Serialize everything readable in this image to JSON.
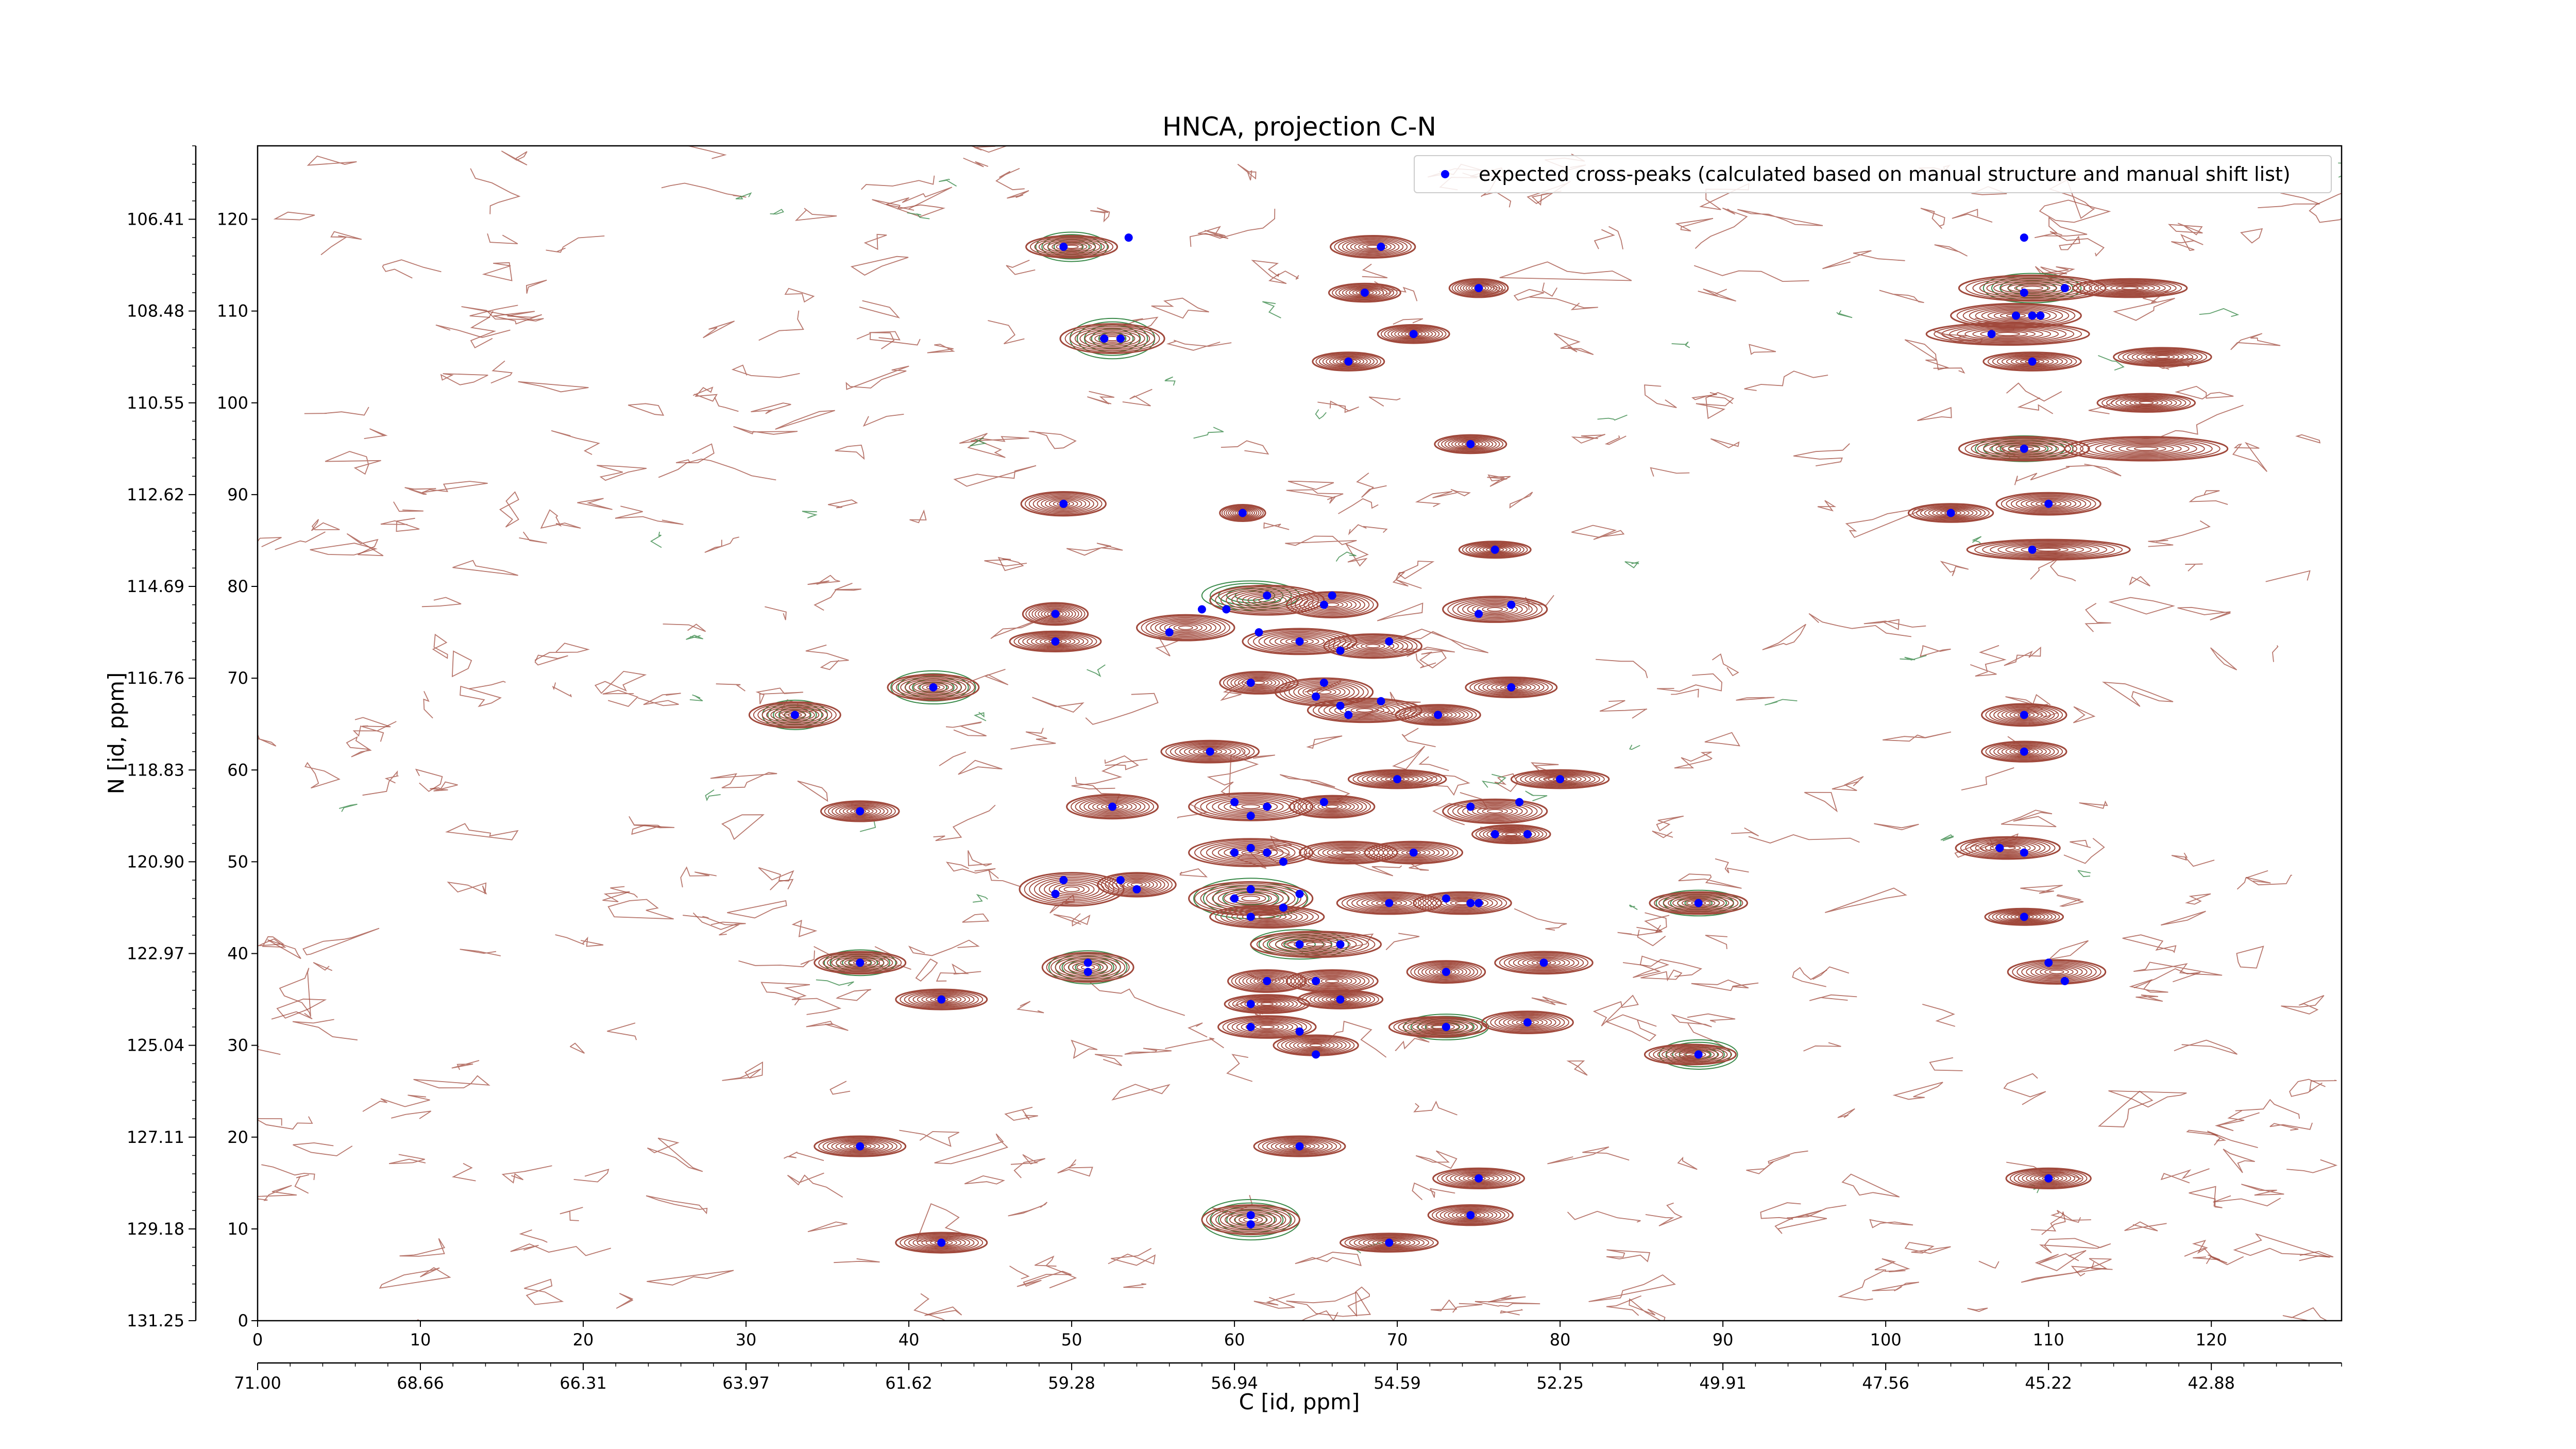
{
  "chart_data": {
    "type": "scatter",
    "title": "HNCA, projection C-N",
    "xlabel": "C [id, ppm]",
    "ylabel": "N [id, ppm]",
    "xlim": [
      0,
      128
    ],
    "ylim": [
      0,
      128
    ],
    "x_ticks": [
      0,
      10,
      20,
      30,
      40,
      50,
      60,
      70,
      80,
      90,
      100,
      110,
      120
    ],
    "y_ticks": [
      0,
      10,
      20,
      30,
      40,
      50,
      60,
      70,
      80,
      90,
      100,
      110,
      120
    ],
    "x_ppm_ticks": [
      "71.00",
      "68.66",
      "66.31",
      "63.97",
      "61.62",
      "59.28",
      "56.94",
      "54.59",
      "52.25",
      "49.91",
      "47.56",
      "45.22",
      "42.88"
    ],
    "y_ppm_ticks": [
      "131.25",
      "129.18",
      "127.11",
      "125.04",
      "122.97",
      "120.90",
      "118.83",
      "116.76",
      "114.69",
      "112.62",
      "110.55",
      "108.48",
      "106.41"
    ],
    "grid": false,
    "legend_position": "top-right",
    "legend_label": "expected cross-peaks (calculated based on manual structure and manual shift list)",
    "colors": {
      "positive_contour": "#a0493c",
      "negative_contour": "#3a8a4a",
      "peak_marker": "#0000ff"
    },
    "series": [
      {
        "name": "expected cross-peaks (calculated based on manual structure and manual shift list)",
        "points": [
          {
            "x": 49.5,
            "y": 117
          },
          {
            "x": 53.5,
            "y": 118
          },
          {
            "x": 69,
            "y": 117
          },
          {
            "x": 68,
            "y": 112
          },
          {
            "x": 75,
            "y": 112.5
          },
          {
            "x": 52,
            "y": 107
          },
          {
            "x": 53,
            "y": 107
          },
          {
            "x": 67,
            "y": 104.5
          },
          {
            "x": 71,
            "y": 107.5
          },
          {
            "x": 108.5,
            "y": 118
          },
          {
            "x": 108,
            "y": 109.5
          },
          {
            "x": 109,
            "y": 109.5
          },
          {
            "x": 109.5,
            "y": 109.5
          },
          {
            "x": 108.5,
            "y": 112
          },
          {
            "x": 106.5,
            "y": 107.5
          },
          {
            "x": 111,
            "y": 112.5
          },
          {
            "x": 109,
            "y": 104.5
          },
          {
            "x": 74.5,
            "y": 95.5
          },
          {
            "x": 49.5,
            "y": 89
          },
          {
            "x": 60.5,
            "y": 88
          },
          {
            "x": 108.5,
            "y": 95
          },
          {
            "x": 110,
            "y": 89
          },
          {
            "x": 104,
            "y": 88
          },
          {
            "x": 109,
            "y": 84
          },
          {
            "x": 76,
            "y": 84
          },
          {
            "x": 49,
            "y": 77
          },
          {
            "x": 49,
            "y": 74
          },
          {
            "x": 56,
            "y": 75
          },
          {
            "x": 58,
            "y": 77.5
          },
          {
            "x": 59.5,
            "y": 77.5
          },
          {
            "x": 62,
            "y": 79
          },
          {
            "x": 66,
            "y": 79
          },
          {
            "x": 65.5,
            "y": 78
          },
          {
            "x": 61.5,
            "y": 75
          },
          {
            "x": 64,
            "y": 74
          },
          {
            "x": 66.5,
            "y": 73
          },
          {
            "x": 69.5,
            "y": 74
          },
          {
            "x": 75,
            "y": 77
          },
          {
            "x": 77,
            "y": 78
          },
          {
            "x": 41.5,
            "y": 69
          },
          {
            "x": 33,
            "y": 66
          },
          {
            "x": 61,
            "y": 69.5
          },
          {
            "x": 65,
            "y": 68
          },
          {
            "x": 65.5,
            "y": 69.5
          },
          {
            "x": 66.5,
            "y": 67
          },
          {
            "x": 69,
            "y": 67.5
          },
          {
            "x": 67,
            "y": 66
          },
          {
            "x": 72.5,
            "y": 66
          },
          {
            "x": 77,
            "y": 69
          },
          {
            "x": 58.5,
            "y": 62
          },
          {
            "x": 108.5,
            "y": 66
          },
          {
            "x": 108.5,
            "y": 62
          },
          {
            "x": 70,
            "y": 59
          },
          {
            "x": 80,
            "y": 59
          },
          {
            "x": 37,
            "y": 55.5
          },
          {
            "x": 52.5,
            "y": 56
          },
          {
            "x": 60,
            "y": 56.5
          },
          {
            "x": 62,
            "y": 56
          },
          {
            "x": 61,
            "y": 55
          },
          {
            "x": 65.5,
            "y": 56.5
          },
          {
            "x": 74.5,
            "y": 56
          },
          {
            "x": 77.5,
            "y": 56.5
          },
          {
            "x": 76,
            "y": 53
          },
          {
            "x": 78,
            "y": 53
          },
          {
            "x": 60,
            "y": 51
          },
          {
            "x": 61,
            "y": 51.5
          },
          {
            "x": 62,
            "y": 51
          },
          {
            "x": 63,
            "y": 50
          },
          {
            "x": 71,
            "y": 51
          },
          {
            "x": 107,
            "y": 51.5
          },
          {
            "x": 108.5,
            "y": 51
          },
          {
            "x": 49.5,
            "y": 48
          },
          {
            "x": 49,
            "y": 46.5
          },
          {
            "x": 53,
            "y": 48
          },
          {
            "x": 54,
            "y": 47
          },
          {
            "x": 60,
            "y": 46
          },
          {
            "x": 61,
            "y": 47
          },
          {
            "x": 64,
            "y": 46.5
          },
          {
            "x": 61,
            "y": 44
          },
          {
            "x": 63,
            "y": 45
          },
          {
            "x": 69.5,
            "y": 45.5
          },
          {
            "x": 73,
            "y": 46
          },
          {
            "x": 74.5,
            "y": 45.5
          },
          {
            "x": 75,
            "y": 45.5
          },
          {
            "x": 88.5,
            "y": 45.5
          },
          {
            "x": 108.5,
            "y": 44
          },
          {
            "x": 64,
            "y": 41
          },
          {
            "x": 66.5,
            "y": 41
          },
          {
            "x": 37,
            "y": 39
          },
          {
            "x": 51,
            "y": 39
          },
          {
            "x": 51,
            "y": 38
          },
          {
            "x": 62,
            "y": 37
          },
          {
            "x": 65,
            "y": 37
          },
          {
            "x": 73,
            "y": 38
          },
          {
            "x": 79,
            "y": 39
          },
          {
            "x": 110,
            "y": 39
          },
          {
            "x": 111,
            "y": 37
          },
          {
            "x": 42,
            "y": 35
          },
          {
            "x": 61,
            "y": 34.5
          },
          {
            "x": 66.5,
            "y": 35
          },
          {
            "x": 61,
            "y": 32
          },
          {
            "x": 64,
            "y": 31.5
          },
          {
            "x": 65,
            "y": 29
          },
          {
            "x": 73,
            "y": 32
          },
          {
            "x": 78,
            "y": 32.5
          },
          {
            "x": 88.5,
            "y": 29
          },
          {
            "x": 37,
            "y": 19
          },
          {
            "x": 64,
            "y": 19
          },
          {
            "x": 75,
            "y": 15.5
          },
          {
            "x": 110,
            "y": 15.5
          },
          {
            "x": 74.5,
            "y": 11.5
          },
          {
            "x": 61,
            "y": 11.5
          },
          {
            "x": 61,
            "y": 10.5
          },
          {
            "x": 42,
            "y": 8.5
          },
          {
            "x": 69.5,
            "y": 8.5
          }
        ]
      }
    ],
    "positive_clusters": [
      {
        "x": 50,
        "y": 117,
        "rx": 2.8,
        "ry": 1.2
      },
      {
        "x": 52.5,
        "y": 107,
        "rx": 3.2,
        "ry": 1.6
      },
      {
        "x": 68.5,
        "y": 117,
        "rx": 2.6,
        "ry": 1.2
      },
      {
        "x": 75,
        "y": 112.5,
        "rx": 1.8,
        "ry": 1.0
      },
      {
        "x": 67,
        "y": 104.5,
        "rx": 2.2,
        "ry": 1.0
      },
      {
        "x": 71,
        "y": 107.5,
        "rx": 2.2,
        "ry": 1.0
      },
      {
        "x": 68,
        "y": 112,
        "rx": 2.2,
        "ry": 1.0
      },
      {
        "x": 109,
        "y": 112.5,
        "rx": 4.5,
        "ry": 1.4
      },
      {
        "x": 108,
        "y": 109.5,
        "rx": 4.0,
        "ry": 1.3
      },
      {
        "x": 107.5,
        "y": 107.5,
        "rx": 5.0,
        "ry": 1.2
      },
      {
        "x": 115,
        "y": 112.5,
        "rx": 3.5,
        "ry": 1.0
      },
      {
        "x": 117,
        "y": 105,
        "rx": 3.0,
        "ry": 1.0
      },
      {
        "x": 109,
        "y": 104.5,
        "rx": 3.0,
        "ry": 1.0
      },
      {
        "x": 116,
        "y": 100,
        "rx": 3.0,
        "ry": 1.0
      },
      {
        "x": 108.5,
        "y": 95,
        "rx": 4.0,
        "ry": 1.3
      },
      {
        "x": 116,
        "y": 95,
        "rx": 5.0,
        "ry": 1.3
      },
      {
        "x": 110,
        "y": 89,
        "rx": 3.2,
        "ry": 1.2
      },
      {
        "x": 104,
        "y": 88,
        "rx": 2.6,
        "ry": 1.0
      },
      {
        "x": 110,
        "y": 84,
        "rx": 5.0,
        "ry": 1.1
      },
      {
        "x": 74.5,
        "y": 95.5,
        "rx": 2.2,
        "ry": 1.0
      },
      {
        "x": 49.5,
        "y": 89,
        "rx": 2.6,
        "ry": 1.3
      },
      {
        "x": 60.5,
        "y": 88,
        "rx": 1.4,
        "ry": 0.9
      },
      {
        "x": 76,
        "y": 84,
        "rx": 2.2,
        "ry": 0.9
      },
      {
        "x": 49,
        "y": 77,
        "rx": 2.0,
        "ry": 1.2
      },
      {
        "x": 49,
        "y": 74,
        "rx": 2.8,
        "ry": 1.1
      },
      {
        "x": 57,
        "y": 75.5,
        "rx": 3.0,
        "ry": 1.4
      },
      {
        "x": 62,
        "y": 78.5,
        "rx": 3.5,
        "ry": 1.6
      },
      {
        "x": 66,
        "y": 78,
        "rx": 2.8,
        "ry": 1.4
      },
      {
        "x": 64,
        "y": 74,
        "rx": 3.5,
        "ry": 1.4
      },
      {
        "x": 68.5,
        "y": 73.5,
        "rx": 3.0,
        "ry": 1.3
      },
      {
        "x": 76,
        "y": 77.5,
        "rx": 3.2,
        "ry": 1.4
      },
      {
        "x": 41.5,
        "y": 69,
        "rx": 2.8,
        "ry": 1.4
      },
      {
        "x": 33,
        "y": 66,
        "rx": 2.8,
        "ry": 1.4
      },
      {
        "x": 61.5,
        "y": 69.5,
        "rx": 2.4,
        "ry": 1.2
      },
      {
        "x": 65.5,
        "y": 68.5,
        "rx": 3.0,
        "ry": 1.5
      },
      {
        "x": 68,
        "y": 66.5,
        "rx": 3.5,
        "ry": 1.3
      },
      {
        "x": 72.5,
        "y": 66,
        "rx": 2.6,
        "ry": 1.1
      },
      {
        "x": 77,
        "y": 69,
        "rx": 2.8,
        "ry": 1.1
      },
      {
        "x": 58.5,
        "y": 62,
        "rx": 3.0,
        "ry": 1.2
      },
      {
        "x": 108.5,
        "y": 66,
        "rx": 2.6,
        "ry": 1.2
      },
      {
        "x": 108.5,
        "y": 62,
        "rx": 2.6,
        "ry": 1.1
      },
      {
        "x": 70,
        "y": 59,
        "rx": 3.0,
        "ry": 1.0
      },
      {
        "x": 80,
        "y": 59,
        "rx": 3.0,
        "ry": 1.0
      },
      {
        "x": 37,
        "y": 55.5,
        "rx": 2.4,
        "ry": 1.1
      },
      {
        "x": 52.5,
        "y": 56,
        "rx": 2.8,
        "ry": 1.3
      },
      {
        "x": 61,
        "y": 56,
        "rx": 3.8,
        "ry": 1.5
      },
      {
        "x": 66,
        "y": 56,
        "rx": 2.6,
        "ry": 1.2
      },
      {
        "x": 76,
        "y": 55.5,
        "rx": 3.2,
        "ry": 1.3
      },
      {
        "x": 77,
        "y": 53,
        "rx": 2.4,
        "ry": 1.0
      },
      {
        "x": 61,
        "y": 51,
        "rx": 3.8,
        "ry": 1.5
      },
      {
        "x": 67,
        "y": 51,
        "rx": 3.0,
        "ry": 1.2
      },
      {
        "x": 71,
        "y": 51,
        "rx": 3.0,
        "ry": 1.2
      },
      {
        "x": 107.5,
        "y": 51.5,
        "rx": 3.2,
        "ry": 1.2
      },
      {
        "x": 50,
        "y": 47,
        "rx": 3.2,
        "ry": 1.8
      },
      {
        "x": 54,
        "y": 47.5,
        "rx": 2.4,
        "ry": 1.3
      },
      {
        "x": 61,
        "y": 46,
        "rx": 3.8,
        "ry": 1.8
      },
      {
        "x": 62,
        "y": 44,
        "rx": 3.5,
        "ry": 1.2
      },
      {
        "x": 69.5,
        "y": 45.5,
        "rx": 3.2,
        "ry": 1.2
      },
      {
        "x": 74,
        "y": 45.5,
        "rx": 3.0,
        "ry": 1.2
      },
      {
        "x": 88.5,
        "y": 45.5,
        "rx": 3.0,
        "ry": 1.2
      },
      {
        "x": 108.5,
        "y": 44,
        "rx": 2.4,
        "ry": 0.9
      },
      {
        "x": 65,
        "y": 41,
        "rx": 4.0,
        "ry": 1.4
      },
      {
        "x": 37,
        "y": 39,
        "rx": 2.8,
        "ry": 1.2
      },
      {
        "x": 51,
        "y": 38.5,
        "rx": 2.8,
        "ry": 1.6
      },
      {
        "x": 62,
        "y": 37,
        "rx": 2.4,
        "ry": 1.2
      },
      {
        "x": 66,
        "y": 37,
        "rx": 2.8,
        "ry": 1.2
      },
      {
        "x": 73,
        "y": 38,
        "rx": 2.4,
        "ry": 1.2
      },
      {
        "x": 79,
        "y": 39,
        "rx": 3.0,
        "ry": 1.2
      },
      {
        "x": 110.5,
        "y": 38,
        "rx": 3.0,
        "ry": 1.3
      },
      {
        "x": 42,
        "y": 35,
        "rx": 2.8,
        "ry": 1.1
      },
      {
        "x": 62,
        "y": 34.5,
        "rx": 2.6,
        "ry": 1.0
      },
      {
        "x": 66.5,
        "y": 35,
        "rx": 2.6,
        "ry": 1.0
      },
      {
        "x": 62,
        "y": 32,
        "rx": 3.0,
        "ry": 1.2
      },
      {
        "x": 65,
        "y": 30,
        "rx": 2.6,
        "ry": 1.1
      },
      {
        "x": 72.5,
        "y": 32,
        "rx": 3.0,
        "ry": 1.1
      },
      {
        "x": 78,
        "y": 32.5,
        "rx": 2.8,
        "ry": 1.2
      },
      {
        "x": 88,
        "y": 29,
        "rx": 2.8,
        "ry": 1.1
      },
      {
        "x": 37,
        "y": 19,
        "rx": 2.8,
        "ry": 1.1
      },
      {
        "x": 64,
        "y": 19,
        "rx": 2.8,
        "ry": 1.1
      },
      {
        "x": 75,
        "y": 15.5,
        "rx": 2.8,
        "ry": 1.1
      },
      {
        "x": 110,
        "y": 15.5,
        "rx": 2.6,
        "ry": 1.1
      },
      {
        "x": 74.5,
        "y": 11.5,
        "rx": 2.6,
        "ry": 1.1
      },
      {
        "x": 61,
        "y": 11,
        "rx": 3.0,
        "ry": 1.6
      },
      {
        "x": 42,
        "y": 8.5,
        "rx": 2.8,
        "ry": 1.1
      },
      {
        "x": 69.5,
        "y": 8.5,
        "rx": 3.0,
        "ry": 1.0
      }
    ],
    "negative_clusters": [
      {
        "x": 50,
        "y": 117,
        "rx": 2.2,
        "ry": 1.6
      },
      {
        "x": 52.5,
        "y": 107,
        "rx": 2.6,
        "ry": 2.2
      },
      {
        "x": 61,
        "y": 79,
        "rx": 3.0,
        "ry": 1.6
      },
      {
        "x": 41.5,
        "y": 69,
        "rx": 2.6,
        "ry": 1.8
      },
      {
        "x": 33,
        "y": 66,
        "rx": 2.0,
        "ry": 1.6
      },
      {
        "x": 61,
        "y": 46,
        "rx": 3.5,
        "ry": 2.2
      },
      {
        "x": 61,
        "y": 11,
        "rx": 3.0,
        "ry": 2.2
      },
      {
        "x": 88.5,
        "y": 29,
        "rx": 2.4,
        "ry": 1.6
      },
      {
        "x": 88.5,
        "y": 45.5,
        "rx": 2.6,
        "ry": 1.4
      },
      {
        "x": 109,
        "y": 112.5,
        "rx": 3.0,
        "ry": 1.6
      },
      {
        "x": 108.5,
        "y": 95,
        "rx": 3.0,
        "ry": 1.4
      },
      {
        "x": 73,
        "y": 32,
        "rx": 2.6,
        "ry": 1.4
      },
      {
        "x": 37,
        "y": 39,
        "rx": 2.2,
        "ry": 1.4
      },
      {
        "x": 51,
        "y": 38.5,
        "rx": 2.4,
        "ry": 1.8
      },
      {
        "x": 64,
        "y": 41,
        "rx": 3.0,
        "ry": 1.6
      }
    ]
  }
}
